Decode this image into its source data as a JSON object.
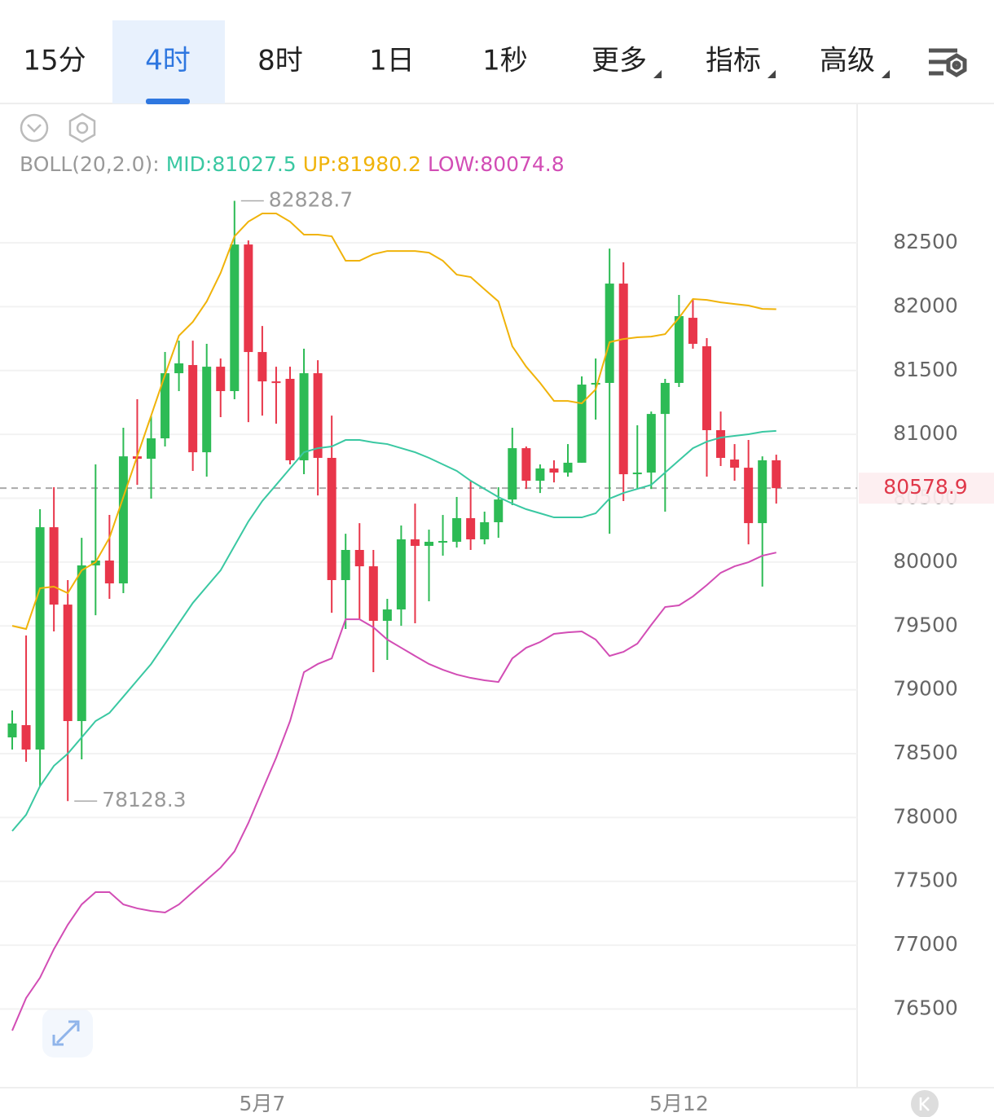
{
  "tabs": {
    "items": [
      "15分",
      "4时",
      "8时",
      "1日",
      "1秒",
      "更多",
      "指标",
      "高级"
    ],
    "active": 1
  },
  "chart_data": {
    "type": "candlestick",
    "categories": [
      null,
      null,
      null,
      null,
      null,
      null,
      null,
      null,
      null,
      null,
      null,
      null,
      null,
      null,
      null,
      null,
      null,
      null,
      "5月7",
      null,
      null,
      null,
      null,
      null,
      null,
      null,
      null,
      null,
      null,
      null,
      null,
      null,
      null,
      null,
      null,
      null,
      null,
      null,
      null,
      null,
      null,
      null,
      null,
      null,
      null,
      null,
      null,
      null,
      "5月12",
      null,
      null,
      null,
      null,
      null,
      null,
      null
    ],
    "open": [
      78627,
      78723,
      78532,
      80273,
      79667,
      78755,
      79974,
      80012,
      79833,
      80828,
      80809,
      80969,
      81479,
      81543,
      80860,
      81530,
      81339,
      82487,
      81645,
      81415,
      81435,
      80797,
      81479,
      80816,
      79859,
      80095,
      79967,
      79540,
      79629,
      80178,
      80127,
      80159,
      80159,
      80344,
      80178,
      80312,
      80490,
      80892,
      80637,
      80733,
      80701,
      80778,
      81390,
      81403,
      82181,
      80688,
      80701,
      81160,
      81403,
      81913,
      81690,
      81033,
      80803,
      80739,
      80305,
      80797
    ],
    "high": [
      78838,
      79425,
      80414,
      80586,
      79859,
      80190,
      80765,
      80369,
      81052,
      81275,
      81147,
      81645,
      81734,
      81734,
      81709,
      81594,
      82828.7,
      82519,
      81849,
      81530,
      81530,
      81671,
      81581,
      81147,
      80222,
      80305,
      80095,
      79712,
      80286,
      80458,
      80254,
      80369,
      80510,
      80637,
      80395,
      80586,
      81052,
      80905,
      80765,
      80797,
      80924,
      81454,
      81594,
      82455,
      82347,
      81071,
      81179,
      81435,
      82092,
      82053,
      81754,
      81179,
      80924,
      80956,
      80828,
      80841
    ],
    "low": [
      78532,
      78436,
      78245,
      79457,
      78128.3,
      78455,
      79584,
      79712,
      79757,
      80605,
      80497,
      80905,
      81339,
      80714,
      80669,
      81135,
      81275,
      81096,
      81147,
      81084,
      80765,
      80688,
      80522,
      79603,
      79476,
      79553,
      79138,
      79234,
      79501,
      79521,
      79693,
      80050,
      80114,
      80095,
      80139,
      80190,
      80446,
      80573,
      80541,
      80624,
      80669,
      80778,
      81116,
      80222,
      80478,
      80573,
      80573,
      80395,
      81371,
      81671,
      80669,
      80752,
      80637,
      80139,
      79808,
      80458
    ],
    "close": [
      78736,
      78532,
      80273,
      79667,
      78755,
      79974,
      80012,
      79833,
      80828,
      80809,
      80969,
      81479,
      81556,
      80860,
      81530,
      81339,
      82487,
      81645,
      81415,
      81403,
      80797,
      81479,
      80816,
      79859,
      80095,
      79967,
      79540,
      79629,
      80178,
      80127,
      80159,
      80165,
      80344,
      80178,
      80312,
      80490,
      80892,
      80637,
      80733,
      80701,
      80778,
      81390,
      81403,
      82181,
      80688,
      80701,
      81160,
      81403,
      81926,
      81709,
      81033,
      80816,
      80739,
      80305,
      80797,
      80578.9
    ],
    "up_color": "#2dbb55",
    "down_color": "#e8364a",
    "indicator": {
      "label": "BOLL(20,2.0):",
      "series": [
        {
          "name": "MID",
          "label": "MID:81027.5",
          "color": "#3ac8a2",
          "values": [
            77894,
            78021,
            78245,
            78404,
            78500,
            78627,
            78755,
            78819,
            78946,
            79074,
            79202,
            79361,
            79521,
            79680,
            79808,
            79935,
            80127,
            80318,
            80478,
            80605,
            80733,
            80860,
            80892,
            80905,
            80956,
            80956,
            80937,
            80924,
            80892,
            80860,
            80816,
            80765,
            80714,
            80637,
            80573,
            80509,
            80458,
            80414,
            80382,
            80350,
            80350,
            80350,
            80382,
            80497,
            80541,
            80573,
            80605,
            80701,
            80797,
            80892,
            80943,
            80975,
            80988,
            81001,
            81020,
            81027.5
          ]
        },
        {
          "name": "UP",
          "label": "UP:81980.2",
          "color": "#f0b30a",
          "values": [
            79501,
            79476,
            79795,
            79808,
            79757,
            79935,
            79999,
            80190,
            80509,
            80828,
            81147,
            81466,
            81773,
            81881,
            82041,
            82264,
            82551,
            82666,
            82730,
            82730,
            82666,
            82564,
            82564,
            82551,
            82360,
            82360,
            82411,
            82436,
            82436,
            82436,
            82423,
            82360,
            82251,
            82232,
            82136,
            82041,
            81690,
            81530,
            81403,
            81262,
            81262,
            81243,
            81352,
            81722,
            81747,
            81760,
            81766,
            81785,
            81913,
            82060,
            82053,
            82034,
            82021,
            82009,
            81983,
            81980.2
          ]
        },
        {
          "name": "LOW",
          "label": "LOW:80074.8",
          "color": "#d24db5",
          "values": [
            76331,
            76586,
            76745,
            76969,
            77160,
            77319,
            77415,
            77415,
            77319,
            77288,
            77268,
            77256,
            77319,
            77415,
            77511,
            77607,
            77734,
            77957,
            78213,
            78468,
            78755,
            79138,
            79202,
            79246,
            79552,
            79552,
            79489,
            79393,
            79329,
            79265,
            79202,
            79157,
            79119,
            79093,
            79074,
            79061,
            79246,
            79329,
            79374,
            79438,
            79450,
            79457,
            79393,
            79265,
            79297,
            79361,
            79508,
            79648,
            79661,
            79731,
            79820,
            79916,
            79967,
            79999,
            80050,
            80074.8
          ]
        }
      ]
    },
    "annotations": [
      {
        "label": "82828.7",
        "value": 82828.7
      },
      {
        "label": "78128.3",
        "value": 78128.3
      }
    ],
    "price_line": {
      "label": "80578.9",
      "value": 80578.9
    },
    "ylim": [
      75884,
      83585
    ],
    "yticks": [
      76500,
      77000,
      77500,
      78000,
      78500,
      79000,
      79500,
      80000,
      80500,
      81000,
      81500,
      82000,
      82500
    ],
    "grid": true
  }
}
